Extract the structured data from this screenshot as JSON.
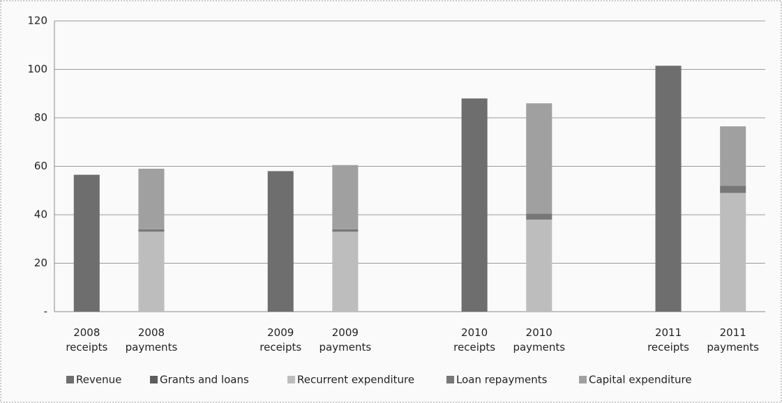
{
  "chart_data": {
    "type": "stacked_bar",
    "categories": [
      "2008 receipts",
      "2008 payments",
      null,
      "2009 receipts",
      "2009 payments",
      null,
      "2010 receipts",
      "2010 payments",
      null,
      "2011 receipts",
      "2011 payments"
    ],
    "series": [
      {
        "name": "Revenue",
        "color": "#6e6e6e",
        "values": [
          56.5,
          null,
          null,
          58,
          null,
          null,
          88,
          null,
          null,
          101.5,
          null
        ]
      },
      {
        "name": "Grants and loans",
        "color": "#5c5c5c",
        "values": [
          null,
          null,
          null,
          null,
          null,
          null,
          null,
          null,
          null,
          null,
          null
        ]
      },
      {
        "name": "Recurrent expenditure",
        "color": "#bdbdbd",
        "values": [
          null,
          33,
          null,
          null,
          33,
          null,
          null,
          38,
          null,
          null,
          49
        ]
      },
      {
        "name": "Loan repayments",
        "color": "#777777",
        "values": [
          null,
          1,
          null,
          null,
          1,
          null,
          null,
          2.5,
          null,
          null,
          3
        ]
      },
      {
        "name": "Capital expenditure",
        "color": "#a0a0a0",
        "values": [
          null,
          25,
          null,
          null,
          26.5,
          null,
          null,
          45.5,
          null,
          null,
          24.5
        ]
      }
    ],
    "ylim": [
      0,
      120
    ],
    "yticks": [
      {
        "value": 0,
        "label": "-"
      },
      20,
      40,
      60,
      80,
      100,
      120
    ],
    "grid": true,
    "legend": "bottom"
  }
}
